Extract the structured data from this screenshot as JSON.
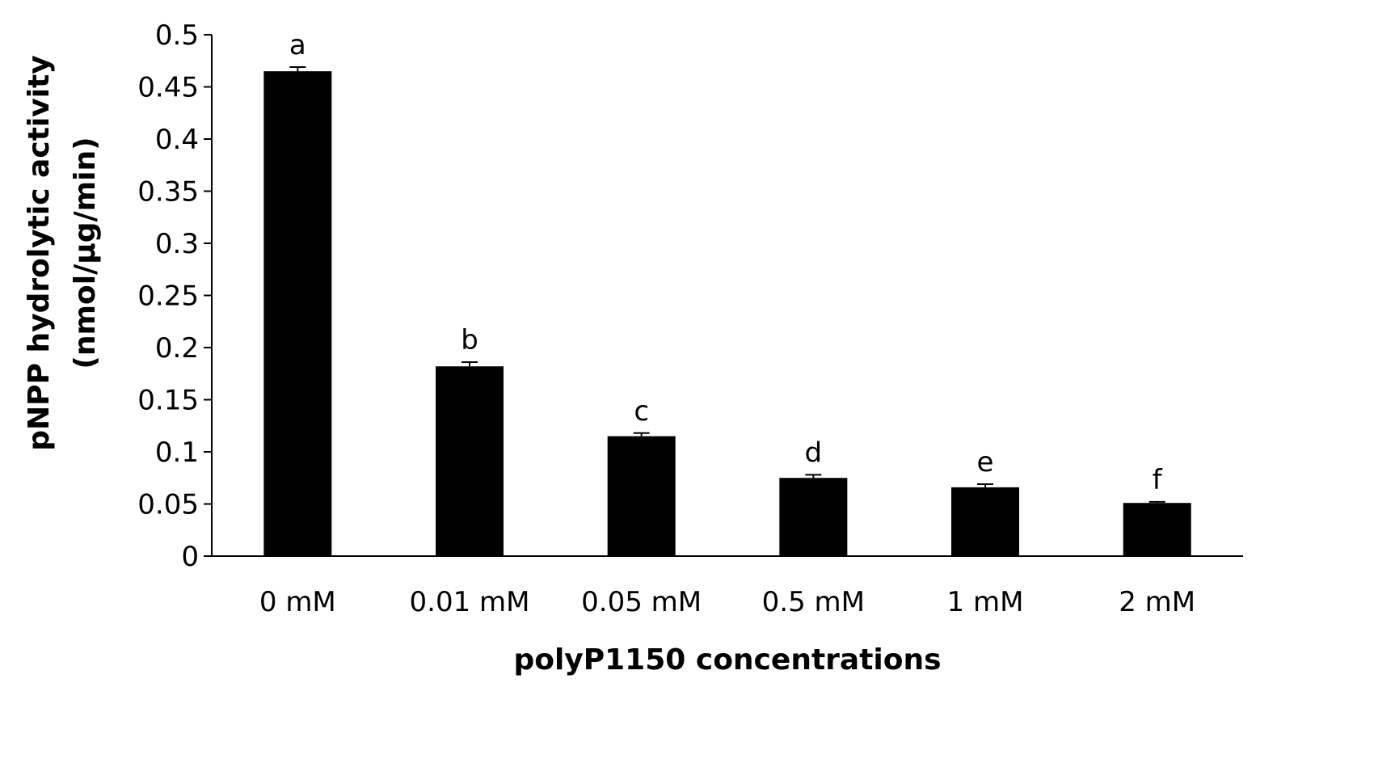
{
  "chart_data": {
    "type": "bar",
    "title": "",
    "xlabel": "polyP1150 concentrations",
    "ylabel_lines": [
      "pNPP hydrolytic activity",
      "(nmol/μg/min)"
    ],
    "categories": [
      "0 mM",
      "0.01 mM",
      "0.05 mM",
      "0.5 mM",
      "1 mM",
      "2 mM"
    ],
    "series": [
      {
        "values": [
          0.465,
          0.182,
          0.115,
          0.075,
          0.066,
          0.051
        ],
        "errors": [
          0.004,
          0.004,
          0.003,
          0.003,
          0.003,
          0.001
        ],
        "labels": [
          "a",
          "b",
          "c",
          "d",
          "e",
          "f"
        ],
        "color": "#000000"
      }
    ],
    "ylim": [
      0,
      0.5
    ],
    "yticks": [
      0,
      0.05,
      0.1,
      0.15,
      0.2,
      0.25,
      0.3,
      0.35,
      0.4,
      0.45,
      0.5
    ],
    "ytick_labels": [
      "0",
      "0.05",
      "0.1",
      "0.15",
      "0.2",
      "0.25",
      "0.3",
      "0.35",
      "0.4",
      "0.45",
      "0.5"
    ],
    "grid": false,
    "legend": "none"
  }
}
